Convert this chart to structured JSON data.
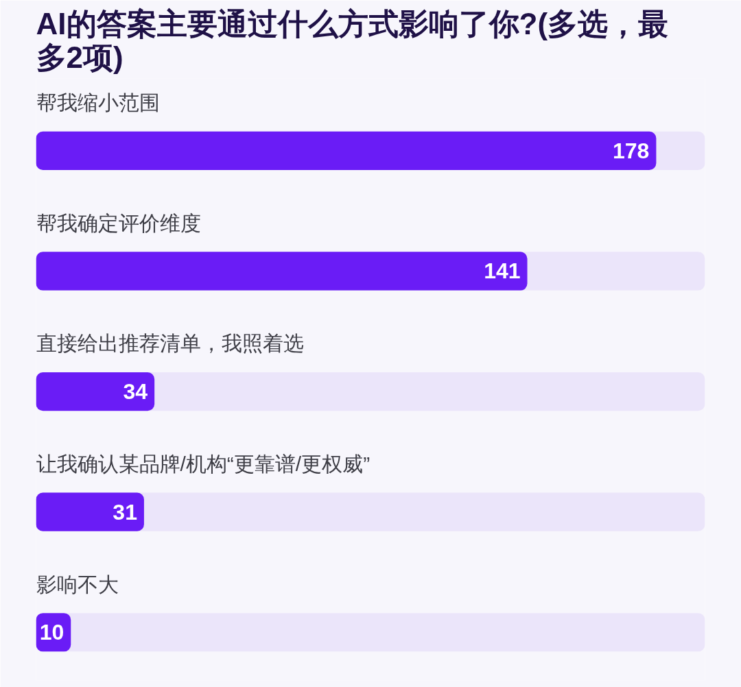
{
  "chart_data": {
    "type": "bar",
    "orientation": "horizontal",
    "title": "AI的答案主要通过什么方式影响了你?(多选，最多2项)",
    "categories": [
      "帮我缩小范围",
      "帮我确定评价维度",
      "直接给出推荐清单，我照着选",
      "让我确认某品牌/机构“更靠谱/更权威”",
      "影响不大"
    ],
    "values": [
      178,
      141,
      34,
      31,
      10
    ],
    "color": "#6a1cf6",
    "xlim": [
      0,
      192
    ],
    "data_labels": true,
    "tick_labels": "y",
    "grid": false
  }
}
